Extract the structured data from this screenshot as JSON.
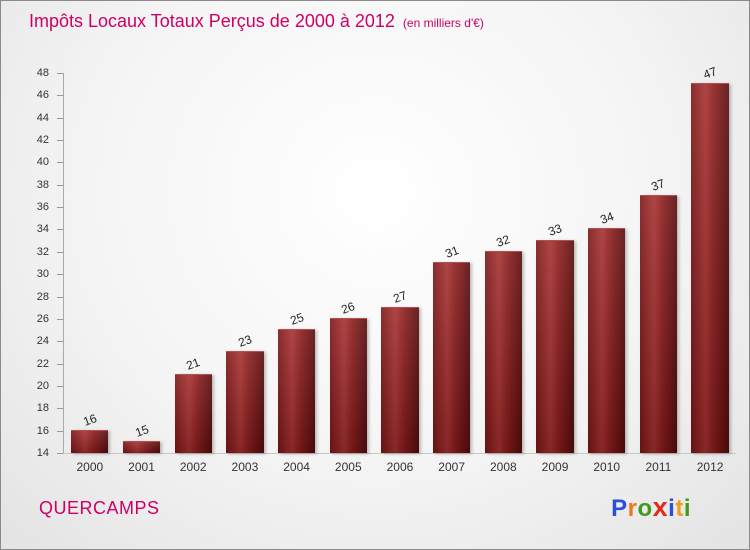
{
  "chart_data": {
    "type": "bar",
    "title": "Impôts Locaux Totaux Perçus de 2000 à 2012",
    "subtitle": "(en milliers d'€)",
    "categories": [
      "2000",
      "2001",
      "2002",
      "2003",
      "2004",
      "2005",
      "2006",
      "2007",
      "2008",
      "2009",
      "2010",
      "2011",
      "2012"
    ],
    "values": [
      16,
      15,
      21,
      23,
      25,
      26,
      27,
      31,
      32,
      33,
      34,
      37,
      47
    ],
    "ylim": [
      14,
      48
    ],
    "yticks": [
      14,
      16,
      18,
      20,
      22,
      24,
      26,
      28,
      30,
      32,
      34,
      36,
      38,
      40,
      42,
      44,
      46,
      48
    ],
    "grid": false,
    "legend": "none",
    "bar_color_dark": "#560b0b",
    "bar_color_light": "#a63030",
    "title_color": "#cc0066"
  },
  "footer": {
    "location": "QUERCAMPS",
    "logo_letters": [
      {
        "ch": "P",
        "color": "#2b4fd8",
        "big": false
      },
      {
        "ch": "r",
        "color": "#f07818",
        "big": false
      },
      {
        "ch": "o",
        "color": "#3f9b1e",
        "big": false
      },
      {
        "ch": "x",
        "color": "#e02a1a",
        "big": true
      },
      {
        "ch": "i",
        "color": "#2b4fd8",
        "big": false
      },
      {
        "ch": "t",
        "color": "#f0a018",
        "big": false
      },
      {
        "ch": "i",
        "color": "#3f9b1e",
        "big": false
      }
    ]
  }
}
